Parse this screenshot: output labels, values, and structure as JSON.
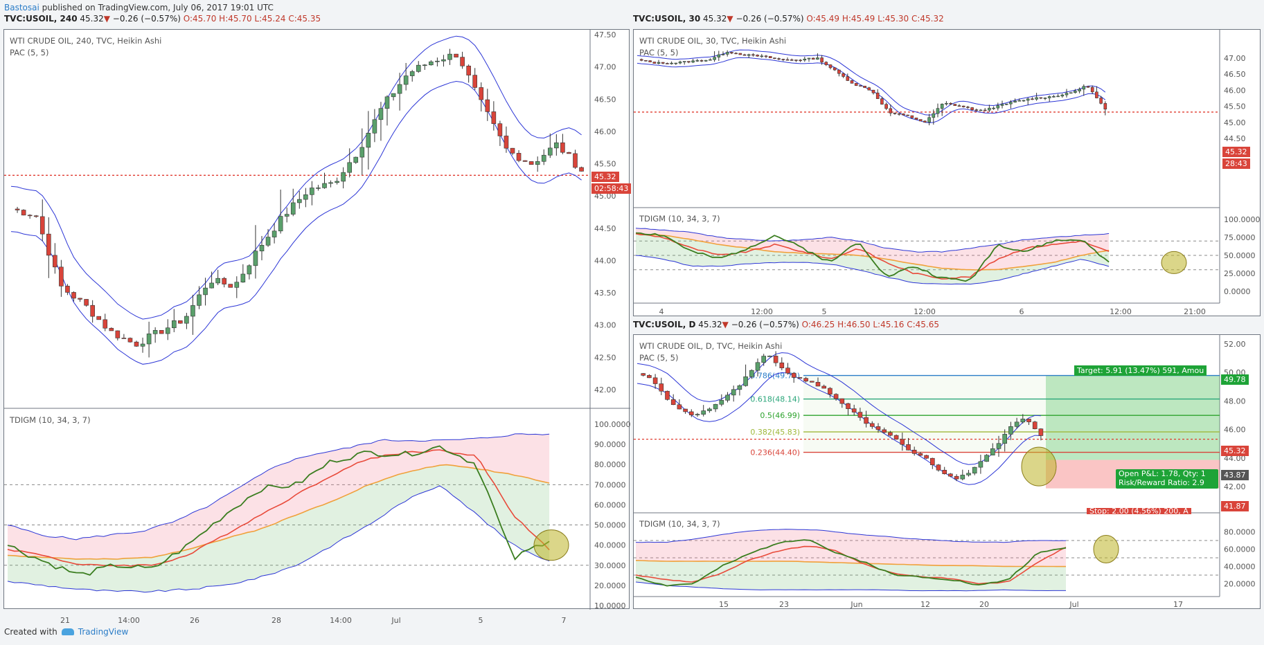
{
  "topbar": {
    "author": "Bastosai",
    "text": " published on TradingView.com, July 06, 2017 19:01 UTC"
  },
  "footer": {
    "created": "Created with",
    "brand": "TradingView"
  },
  "colors": {
    "up": "#5aa06b",
    "down": "#d9443a",
    "band": "#2b35d6",
    "stoch": "#3a7d1f",
    "signal": "#e84a3a",
    "orange": "#f0a03a",
    "redline": "#e03a2f",
    "bg": "#ffffff"
  },
  "chart_left": {
    "header": {
      "sym": "TVC:USOIL, 240",
      "price": " 45.32",
      "arrow": "▼",
      "chg": " −0.26 (−0.57%)",
      "ohlc": " O:45.70 H:45.70 L:45.24 C:45.35"
    },
    "title": "WTI CRUDE OIL, 240, TVC, Heikin Ashi",
    "pac": "PAC (5, 5)",
    "osc_title": "TDIGM (10, 34, 3, 7)",
    "last_price": "45.32",
    "countdown": "02:58:43",
    "price_ticks": [
      "47.50",
      "47.00",
      "46.50",
      "46.00",
      "45.50",
      "45.00",
      "44.50",
      "44.00",
      "43.50",
      "43.00",
      "42.50",
      "42.00"
    ],
    "osc_ticks": [
      "100.0000",
      "90.0000",
      "80.0000",
      "70.0000",
      "60.0000",
      "50.0000",
      "40.0000",
      "30.0000",
      "20.0000",
      "10.0000"
    ],
    "x_ticks": [
      "21",
      "14:00",
      "26",
      "28",
      "14:00",
      "Jul",
      "5",
      "7"
    ]
  },
  "chart_tr": {
    "header": {
      "sym": "TVC:USOIL, 30",
      "price": " 45.32",
      "arrow": "▼",
      "chg": " −0.26 (−0.57%)",
      "ohlc": " O:45.49 H:45.49 L:45.30 C:45.32"
    },
    "title": "WTI CRUDE OIL, 30, TVC, Heikin Ashi",
    "pac": "PAC (5, 5)",
    "osc_title": "TDIGM (10, 34, 3, 7)",
    "last_price": "45.32",
    "countdown": "28:43",
    "price_ticks": [
      "47.00",
      "46.50",
      "46.00",
      "45.50",
      "45.00",
      "44.50"
    ],
    "osc_ticks": [
      "100.0000",
      "75.0000",
      "50.0000",
      "25.0000",
      "0.0000"
    ],
    "x_ticks": [
      "4",
      "12:00",
      "5",
      "12:00",
      "6",
      "12:00",
      "21:00"
    ]
  },
  "chart_br": {
    "header": {
      "sym": "TVC:USOIL, D",
      "price": " 45.32",
      "arrow": "▼",
      "chg": " −0.26 (−0.57%)",
      "ohlc": " O:46.25 H:46.50 L:45.16 C:45.65"
    },
    "title": "WTI CRUDE OIL, D, TVC, Heikin Ashi",
    "pac": "PAC (5, 5)",
    "osc_title": "TDIGM (10, 34, 3, 7)",
    "last_price": "45.32",
    "target_price": "49.78",
    "entry_price": "43.87",
    "stop_price": "41.87",
    "target_label": "Target: 5.91 (13.47%) 591, Amou",
    "pnl_label": "Open P&L: 1.78, Qty: 1",
    "rr_label": "Risk/Reward Ratio: 2.9",
    "stop_label": "Stop: 2.00 (4.56%) 200, A",
    "fib": [
      "0.786(49.79)",
      "0.618(48.14)",
      "0.5(46.99)",
      "0.382(45.83)",
      "0.236(44.40)"
    ],
    "price_ticks": [
      "52.00",
      "50.00",
      "48.00",
      "46.00",
      "44.00",
      "42.00"
    ],
    "osc_ticks": [
      "80.0000",
      "60.0000",
      "40.0000",
      "20.0000"
    ],
    "x_ticks": [
      "15",
      "23",
      "Jun",
      "12",
      "20",
      "Jul",
      "17"
    ]
  }
}
